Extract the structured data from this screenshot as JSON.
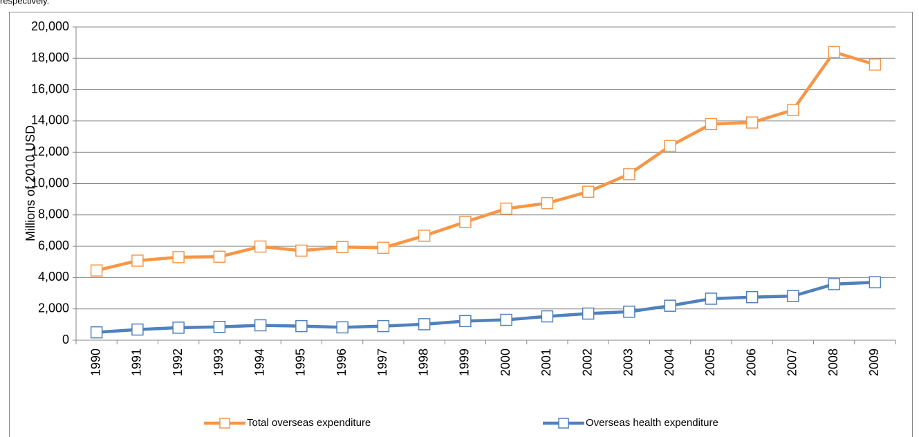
{
  "text": "respectively.",
  "chart_data": {
    "type": "line",
    "ylabel": "Millions of 2010 USD",
    "categories": [
      "1990",
      "1991",
      "1992",
      "1993",
      "1994",
      "1995",
      "1996",
      "1997",
      "1998",
      "1999",
      "2000",
      "2001",
      "2002",
      "2003",
      "2004",
      "2005",
      "2006",
      "2007",
      "2008",
      "2009"
    ],
    "series": [
      {
        "name": "Total overseas expenditure",
        "color": "#f79646",
        "values": [
          4450,
          5080,
          5300,
          5330,
          5980,
          5720,
          5950,
          5900,
          6670,
          7550,
          8400,
          8750,
          9480,
          10600,
          12400,
          13800,
          13900,
          14700,
          18400,
          17600
        ]
      },
      {
        "name": "Overseas health expenditure",
        "color": "#4f81bd",
        "values": [
          500,
          680,
          800,
          850,
          950,
          900,
          820,
          900,
          1020,
          1220,
          1300,
          1520,
          1700,
          1820,
          2200,
          2650,
          2750,
          2820,
          3580,
          3700
        ]
      }
    ],
    "ylim": [
      0,
      20000
    ],
    "yticks": [
      0,
      {
        "value": 2000,
        "label": "2,000"
      },
      {
        "value": 4000,
        "label": "4,000"
      },
      {
        "value": 6000,
        "label": "6,000"
      },
      {
        "value": 8000,
        "label": "8,000"
      },
      {
        "value": 10000,
        "label": "10,000"
      },
      {
        "value": 12000,
        "label": "12,000"
      },
      {
        "value": 14000,
        "label": "14,000"
      },
      {
        "value": 16000,
        "label": "16,000"
      },
      {
        "value": 18000,
        "label": "18,000"
      },
      {
        "value": 20000,
        "label": "20,000"
      }
    ],
    "grid": true,
    "legend": "bottom"
  }
}
